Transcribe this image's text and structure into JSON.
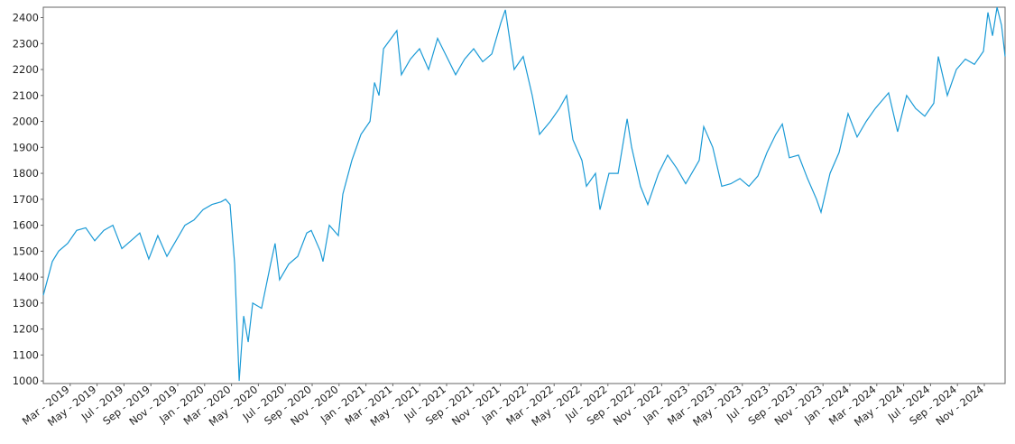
{
  "chart_data": {
    "type": "line",
    "x": [
      2019.0,
      2019.056,
      2019.095,
      2019.151,
      2019.207,
      2019.263,
      2019.319,
      2019.375,
      2019.431,
      2019.487,
      2019.543,
      2019.598,
      2019.654,
      2019.71,
      2019.766,
      2019.822,
      2019.878,
      2019.934,
      2019.99,
      2020.046,
      2020.102,
      2020.13,
      2020.158,
      2020.186,
      2020.214,
      2020.242,
      2020.27,
      2020.298,
      2020.353,
      2020.409,
      2020.437,
      2020.465,
      2020.521,
      2020.577,
      2020.633,
      2020.661,
      2020.717,
      2020.734,
      2020.773,
      2020.829,
      2020.857,
      2020.913,
      2020.969,
      2021.025,
      2021.053,
      2021.081,
      2021.109,
      2021.192,
      2021.22,
      2021.276,
      2021.332,
      2021.388,
      2021.444,
      2021.5,
      2021.556,
      2021.612,
      2021.668,
      2021.724,
      2021.78,
      2021.836,
      2021.864,
      2021.919,
      2021.975,
      2022.031,
      2022.076,
      2022.143,
      2022.199,
      2022.244,
      2022.283,
      2022.339,
      2022.367,
      2022.423,
      2022.451,
      2022.507,
      2022.563,
      2022.619,
      2022.647,
      2022.702,
      2022.747,
      2022.814,
      2022.87,
      2022.926,
      2022.982,
      2023.066,
      2023.094,
      2023.15,
      2023.206,
      2023.262,
      2023.318,
      2023.374,
      2023.43,
      2023.486,
      2023.541,
      2023.581,
      2023.625,
      2023.681,
      2023.737,
      2023.793,
      2023.821,
      2023.877,
      2023.933,
      2023.989,
      2024.045,
      2024.101,
      2024.157,
      2024.24,
      2024.296,
      2024.352,
      2024.408,
      2024.464,
      2024.52,
      2024.548,
      2024.604,
      2024.66,
      2024.716,
      2024.772,
      2024.828,
      2024.856,
      2024.884,
      2024.912,
      2024.94,
      2024.962
    ],
    "series": [
      {
        "color": "#1a9ad6",
        "values": [
          1330,
          1460,
          1500,
          1530,
          1580,
          1590,
          1540,
          1580,
          1600,
          1510,
          1540,
          1570,
          1470,
          1560,
          1480,
          1540,
          1600,
          1620,
          1660,
          1680,
          1690,
          1700,
          1680,
          1450,
          1000,
          1250,
          1150,
          1300,
          1280,
          1450,
          1530,
          1390,
          1450,
          1480,
          1570,
          1580,
          1500,
          1460,
          1600,
          1560,
          1720,
          1850,
          1950,
          2000,
          2150,
          2100,
          2280,
          2350,
          2180,
          2240,
          2280,
          2200,
          2320,
          2250,
          2180,
          2240,
          2280,
          2230,
          2260,
          2380,
          2430,
          2200,
          2250,
          2100,
          1950,
          2000,
          2050,
          2100,
          1930,
          1850,
          1750,
          1800,
          1660,
          1800,
          1800,
          2010,
          1900,
          1750,
          1680,
          1800,
          1870,
          1820,
          1760,
          1850,
          1980,
          1900,
          1750,
          1760,
          1780,
          1750,
          1790,
          1880,
          1950,
          1990,
          1860,
          1870,
          1780,
          1700,
          1650,
          1800,
          1880,
          2030,
          1940,
          2000,
          2050,
          2110,
          1960,
          2100,
          2050,
          2020,
          2070,
          2250,
          2100,
          2200,
          2240,
          2220,
          2270,
          2420,
          2330,
          2440,
          2370,
          2250
        ]
      }
    ],
    "xlim": [
      2019.0,
      2024.962
    ],
    "xticks": [
      {
        "value": 2019.1667,
        "label": "Mar - 2019"
      },
      {
        "value": 2019.3333,
        "label": "May - 2019"
      },
      {
        "value": 2019.5,
        "label": "Jul - 2019"
      },
      {
        "value": 2019.6667,
        "label": "Sep - 2019"
      },
      {
        "value": 2019.8333,
        "label": "Nov - 2019"
      },
      {
        "value": 2020.0,
        "label": "Jan - 2020"
      },
      {
        "value": 2020.1667,
        "label": "Mar - 2020"
      },
      {
        "value": 2020.3333,
        "label": "May - 2020"
      },
      {
        "value": 2020.5,
        "label": "Jul - 2020"
      },
      {
        "value": 2020.6667,
        "label": "Sep - 2020"
      },
      {
        "value": 2020.8333,
        "label": "Nov - 2020"
      },
      {
        "value": 2021.0,
        "label": "Jan - 2021"
      },
      {
        "value": 2021.1667,
        "label": "Mar - 2021"
      },
      {
        "value": 2021.3333,
        "label": "May - 2021"
      },
      {
        "value": 2021.5,
        "label": "Jul - 2021"
      },
      {
        "value": 2021.6667,
        "label": "Sep - 2021"
      },
      {
        "value": 2021.8333,
        "label": "Nov - 2021"
      },
      {
        "value": 2022.0,
        "label": "Jan - 2022"
      },
      {
        "value": 2022.1667,
        "label": "Mar - 2022"
      },
      {
        "value": 2022.3333,
        "label": "May - 2022"
      },
      {
        "value": 2022.5,
        "label": "Jul - 2022"
      },
      {
        "value": 2022.6667,
        "label": "Sep - 2022"
      },
      {
        "value": 2022.8333,
        "label": "Nov - 2022"
      },
      {
        "value": 2023.0,
        "label": "Jan - 2023"
      },
      {
        "value": 2023.1667,
        "label": "Mar - 2023"
      },
      {
        "value": 2023.3333,
        "label": "May - 2023"
      },
      {
        "value": 2023.5,
        "label": "Jul - 2023"
      },
      {
        "value": 2023.6667,
        "label": "Sep - 2023"
      },
      {
        "value": 2023.8333,
        "label": "Nov - 2023"
      },
      {
        "value": 2024.0,
        "label": "Jan - 2024"
      },
      {
        "value": 2024.1667,
        "label": "Mar - 2024"
      },
      {
        "value": 2024.3333,
        "label": "May - 2024"
      },
      {
        "value": 2024.5,
        "label": "Jul - 2024"
      },
      {
        "value": 2024.6667,
        "label": "Sep - 2024"
      },
      {
        "value": 2024.8333,
        "label": "Nov - 2024"
      }
    ],
    "ylim": [
      990,
      2440
    ],
    "yticks": [
      1000,
      1100,
      1200,
      1300,
      1400,
      1500,
      1600,
      1700,
      1800,
      1900,
      2000,
      2100,
      2200,
      2300,
      2400
    ],
    "grid": false
  }
}
